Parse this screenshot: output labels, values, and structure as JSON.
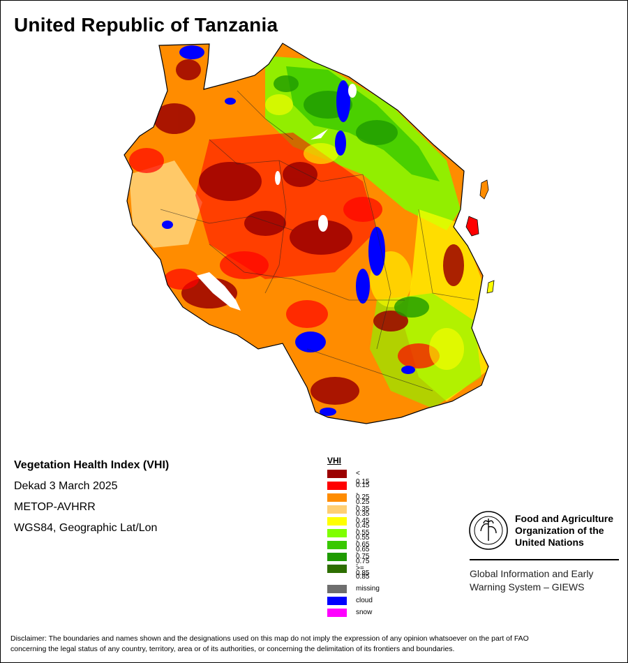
{
  "map": {
    "title": "United Republic of Tanzania"
  },
  "info": {
    "product": "Vegetation Health Index (VHI)",
    "period": "Dekad 3 March 2025",
    "sensor": "METOP-AVHRR",
    "projection": "WGS84, Geographic Lat/Lon"
  },
  "legend": {
    "title": "VHI",
    "classes": [
      {
        "label": "< 0.15",
        "color": "#9b0000"
      },
      {
        "label": "0.15 - 0.25",
        "color": "#ff0000"
      },
      {
        "label": "0.25 - 0.35",
        "color": "#ff8c00"
      },
      {
        "label": "0.35 - 0.45",
        "color": "#ffcf73"
      },
      {
        "label": "0.45 - 0.55",
        "color": "#ffff00"
      },
      {
        "label": "0.55 - 0.65",
        "color": "#7fff00"
      },
      {
        "label": "0.65 - 0.75",
        "color": "#38c800"
      },
      {
        "label": "0.75 - 0.85",
        "color": "#1e9a00"
      },
      {
        "label": ">= 0.85",
        "color": "#2d6e00"
      }
    ],
    "special": [
      {
        "label": "missing",
        "color": "#6e6e6e"
      },
      {
        "label": "cloud",
        "color": "#0000ff"
      },
      {
        "label": "snow",
        "color": "#ff00ff"
      }
    ]
  },
  "organization": {
    "name_line1": "Food and Agriculture",
    "name_line2": "Organization of the",
    "name_line3": "United Nations",
    "emblem_text": "FIAT PANIS",
    "emblem_letters": "FAO",
    "system_line1": "Global Information and Early",
    "system_line2": "Warning System – GIEWS"
  },
  "disclaimer": {
    "line1": "Disclaimer: The boundaries and names shown and the designations used on this map do not imply the expression of any opinion whatsoever on the part of FAO",
    "line2": "concerning the legal status of any country, territory, area or of its authorities, or concerning the delimitation of its frontiers and boundaries."
  }
}
